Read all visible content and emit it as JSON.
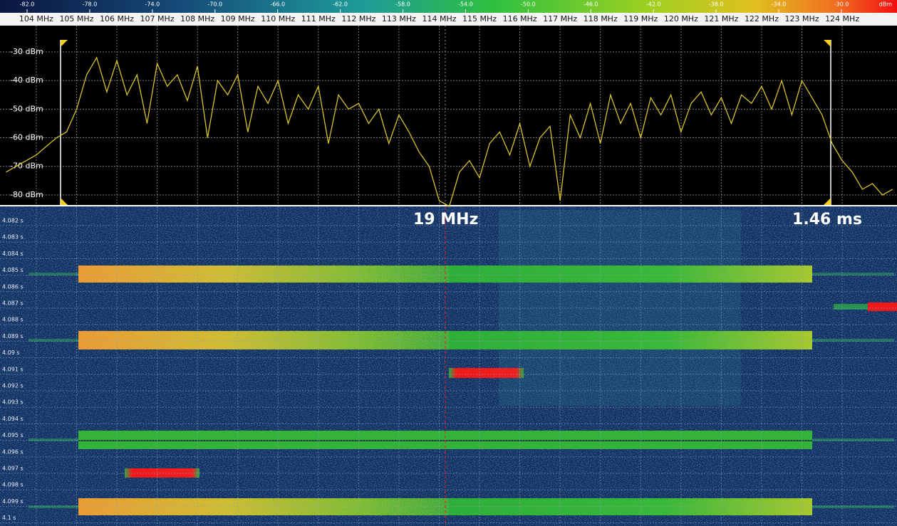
{
  "colorbar": {
    "range": [
      -83.73,
      -26.45
    ],
    "unit": "dBm",
    "ticks": [
      {
        "value": -82,
        "label": "-82.0"
      },
      {
        "value": -78,
        "label": "-78.0"
      },
      {
        "value": -74,
        "label": "-74.0"
      },
      {
        "value": -70,
        "label": "-70.0"
      },
      {
        "value": -66,
        "label": "-66.0"
      },
      {
        "value": -62,
        "label": "-62.0"
      },
      {
        "value": -58,
        "label": "-58.0"
      },
      {
        "value": -54,
        "label": "-54.0"
      },
      {
        "value": -50,
        "label": "-50.0"
      },
      {
        "value": -46,
        "label": "-46.0"
      },
      {
        "value": -42,
        "label": "-42.0"
      },
      {
        "value": -38,
        "label": "-38.0"
      },
      {
        "value": -34,
        "label": "-34.0"
      },
      {
        "value": -30,
        "label": "-30.0"
      }
    ]
  },
  "chart_data": {
    "type": "line",
    "color": "#d8c428",
    "grid": true,
    "xlim": [
      103.1,
      125.36
    ],
    "ylim": [
      -83.5,
      -20.8
    ],
    "xticks": [
      {
        "value": 104,
        "label": "104 MHz"
      },
      {
        "value": 105,
        "label": "105 MHz"
      },
      {
        "value": 106,
        "label": "106 MHz"
      },
      {
        "value": 107,
        "label": "107 MHz"
      },
      {
        "value": 108,
        "label": "108 MHz"
      },
      {
        "value": 109,
        "label": "109 MHz"
      },
      {
        "value": 110,
        "label": "110 MHz"
      },
      {
        "value": 111,
        "label": "111 MHz"
      },
      {
        "value": 112,
        "label": "112 MHz"
      },
      {
        "value": 113,
        "label": "113 MHz"
      },
      {
        "value": 114,
        "label": "114 MHz"
      },
      {
        "value": 115,
        "label": "115 MHz"
      },
      {
        "value": 116,
        "label": "116 MHz"
      },
      {
        "value": 117,
        "label": "117 MHz"
      },
      {
        "value": 118,
        "label": "118 MHz"
      },
      {
        "value": 119,
        "label": "119 MHz"
      },
      {
        "value": 120,
        "label": "120 MHz"
      },
      {
        "value": 121,
        "label": "121 MHz"
      },
      {
        "value": 122,
        "label": "122 MHz"
      },
      {
        "value": 123,
        "label": "123 MHz"
      },
      {
        "value": 124,
        "label": "124 MHz"
      }
    ],
    "yticks": [
      {
        "value": -30,
        "label": "-30 dBm"
      },
      {
        "value": -40,
        "label": "-40 dBm"
      },
      {
        "value": -50,
        "label": "-50 dBm"
      },
      {
        "value": -60,
        "label": "-60 dBm"
      },
      {
        "value": -70,
        "label": "-70 dBm"
      },
      {
        "value": -80,
        "label": "-80 dBm"
      }
    ],
    "x": [
      103.25,
      103.5,
      103.75,
      104,
      104.25,
      104.5,
      104.75,
      105,
      105.25,
      105.5,
      105.75,
      106,
      106.25,
      106.5,
      106.75,
      107,
      107.25,
      107.5,
      107.75,
      108,
      108.25,
      108.5,
      108.75,
      109,
      109.25,
      109.5,
      109.75,
      110,
      110.25,
      110.5,
      110.75,
      111,
      111.25,
      111.5,
      111.75,
      112,
      112.25,
      112.5,
      112.75,
      113,
      113.25,
      113.5,
      113.75,
      114,
      114.25,
      114.5,
      114.75,
      115,
      115.25,
      115.5,
      115.75,
      116,
      116.25,
      116.5,
      116.75,
      117,
      117.25,
      117.5,
      117.75,
      118,
      118.25,
      118.5,
      118.75,
      119,
      119.25,
      119.5,
      119.75,
      120,
      120.25,
      120.5,
      120.75,
      121,
      121.25,
      121.5,
      121.75,
      122,
      122.25,
      122.5,
      122.75,
      123,
      123.25,
      123.5,
      123.75,
      124,
      124.25,
      124.5,
      124.75,
      125,
      125.25
    ],
    "values": [
      -72,
      -70,
      -68,
      -66,
      -63,
      -60,
      -58,
      -50,
      -38,
      -32,
      -44,
      -33,
      -45,
      -38,
      -55,
      -34,
      -42,
      -38,
      -47,
      -35,
      -60,
      -40,
      -45,
      -38,
      -58,
      -42,
      -48,
      -40,
      -55,
      -45,
      -50,
      -42,
      -62,
      -45,
      -50,
      -48,
      -55,
      -50,
      -62,
      -52,
      -58,
      -65,
      -70,
      -82,
      -84,
      -72,
      -68,
      -74,
      -62,
      -58,
      -66,
      -55,
      -70,
      -60,
      -56,
      -82,
      -52,
      -60,
      -48,
      -62,
      -45,
      -55,
      -48,
      -60,
      -46,
      -52,
      -45,
      -58,
      -48,
      -44,
      -52,
      -46,
      -55,
      -45,
      -48,
      -42,
      -50,
      -40,
      -52,
      -40,
      -46,
      -52,
      -62,
      -68,
      -72,
      -78,
      -76,
      -80,
      -78
    ]
  },
  "waterfall": {
    "tlim": [
      4.08114,
      4.10049
    ],
    "time_ticks": [
      {
        "value": 4.082,
        "label": "4.082 s"
      },
      {
        "value": 4.083,
        "label": "4.083 s"
      },
      {
        "value": 4.084,
        "label": "4.084 s"
      },
      {
        "value": 4.085,
        "label": "4.085 s"
      },
      {
        "value": 4.086,
        "label": "4.086 s"
      },
      {
        "value": 4.087,
        "label": "4.087 s"
      },
      {
        "value": 4.088,
        "label": "4.088 s"
      },
      {
        "value": 4.089,
        "label": "4.089 s"
      },
      {
        "value": 4.09,
        "label": "4.09 s"
      },
      {
        "value": 4.091,
        "label": "4.091 s"
      },
      {
        "value": 4.092,
        "label": "4.092 s"
      },
      {
        "value": 4.093,
        "label": "4.093 s"
      },
      {
        "value": 4.094,
        "label": "4.094 s"
      },
      {
        "value": 4.095,
        "label": "4.095 s"
      },
      {
        "value": 4.096,
        "label": "4.096 s"
      },
      {
        "value": 4.097,
        "label": "4.097 s"
      },
      {
        "value": 4.098,
        "label": "4.098 s"
      },
      {
        "value": 4.099,
        "label": "4.099 s"
      },
      {
        "value": 4.1,
        "label": "4.1 s"
      }
    ]
  },
  "annotations": {
    "bandwidth": "19 MHz",
    "duration": "1.46 ms"
  }
}
